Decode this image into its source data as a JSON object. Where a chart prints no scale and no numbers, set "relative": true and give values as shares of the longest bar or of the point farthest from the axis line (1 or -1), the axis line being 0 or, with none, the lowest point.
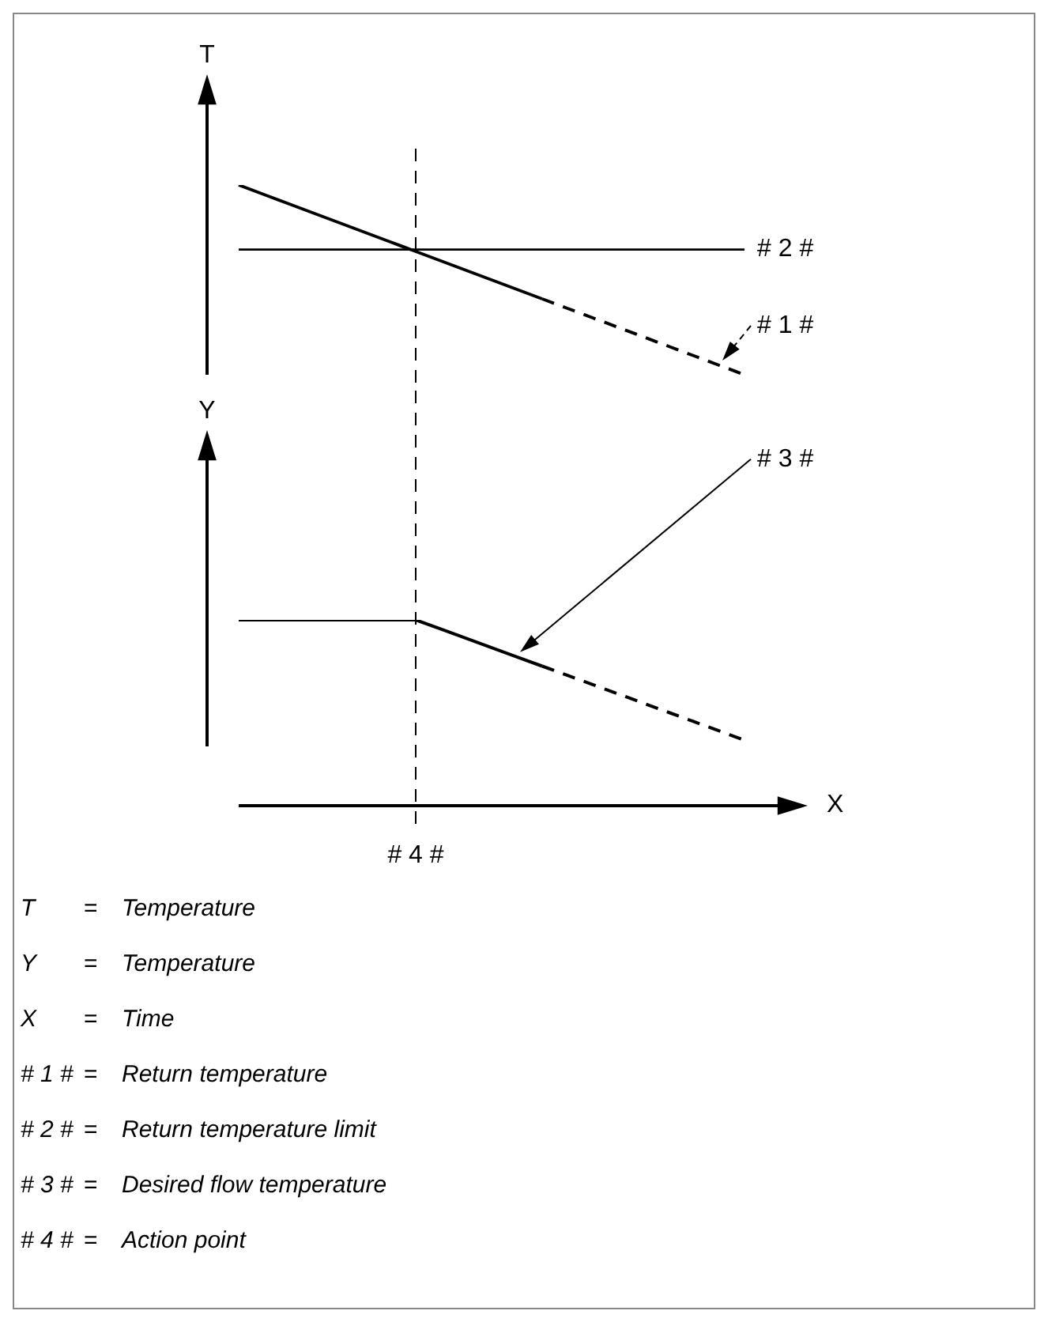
{
  "chart_data": [
    {
      "type": "line",
      "ylabel": "T",
      "relative": true,
      "marker": "none",
      "categories": [
        null,
        null,
        null,
        null,
        null,
        null,
        null,
        null,
        null,
        null,
        null,
        null,
        null,
        null,
        null,
        null,
        null,
        null,
        null,
        null,
        null
      ],
      "series": [
        {
          "color": "#000000",
          "line_style": "solid",
          "values": [
            1,
            0.95,
            0.9,
            0.85,
            0.8,
            0.75,
            0.7,
            0.65,
            0.6,
            0.55,
            0.5,
            0.45,
            0.4,
            null,
            null,
            null,
            null,
            null,
            null,
            null,
            null
          ]
        },
        {
          "name": "# 1 #",
          "color": "#000000",
          "line_style": "dashed",
          "values": [
            null,
            null,
            null,
            null,
            null,
            null,
            null,
            null,
            null,
            null,
            null,
            null,
            0.4,
            0.35,
            0.3,
            0.25,
            0.2,
            0.15,
            0.1,
            0.05,
            0
          ]
        },
        {
          "name": "# 2 #",
          "color": "#000000",
          "line_style": "solid",
          "values": [
            0.66,
            0.66,
            0.66,
            0.66,
            0.66,
            0.66,
            0.66,
            0.66,
            0.66,
            0.66,
            0.66,
            0.66,
            0.66,
            0.66,
            0.66,
            0.66,
            0.66,
            0.66,
            0.66,
            0.66,
            0.66
          ]
        }
      ]
    },
    {
      "type": "line",
      "ylabel": "Y",
      "xlabel": "X",
      "relative": true,
      "marker": "none",
      "categories": [
        null,
        null,
        null,
        null,
        null,
        null,
        null,
        null,
        null,
        null,
        null,
        null,
        null,
        null,
        null,
        null,
        null,
        null,
        null,
        null,
        null
      ],
      "series": [
        {
          "name": "# 3 #",
          "color": "#000000",
          "line_style": "solid",
          "values": [
            1,
            1,
            1,
            1,
            1,
            1,
            1,
            1,
            0.95,
            0.9,
            0.85,
            0.8,
            0.75,
            null,
            null,
            null,
            null,
            null,
            null,
            null,
            null
          ]
        },
        {
          "color": "#000000",
          "line_style": "dashed",
          "values": [
            null,
            null,
            null,
            null,
            null,
            null,
            null,
            null,
            null,
            null,
            null,
            null,
            0.75,
            0.7,
            0.65,
            0.6,
            0.55,
            0.5,
            0.45,
            0.4,
            0.35
          ]
        }
      ],
      "annotations": [
        "# 4 #",
        "T = Temperature",
        "Y = Temperature",
        "X = Time",
        "# 1 # = Return temperature",
        "# 2 # = Return temperature limit",
        "# 3 # = Desired flow temperature",
        "# 4 # = Action point"
      ]
    }
  ]
}
